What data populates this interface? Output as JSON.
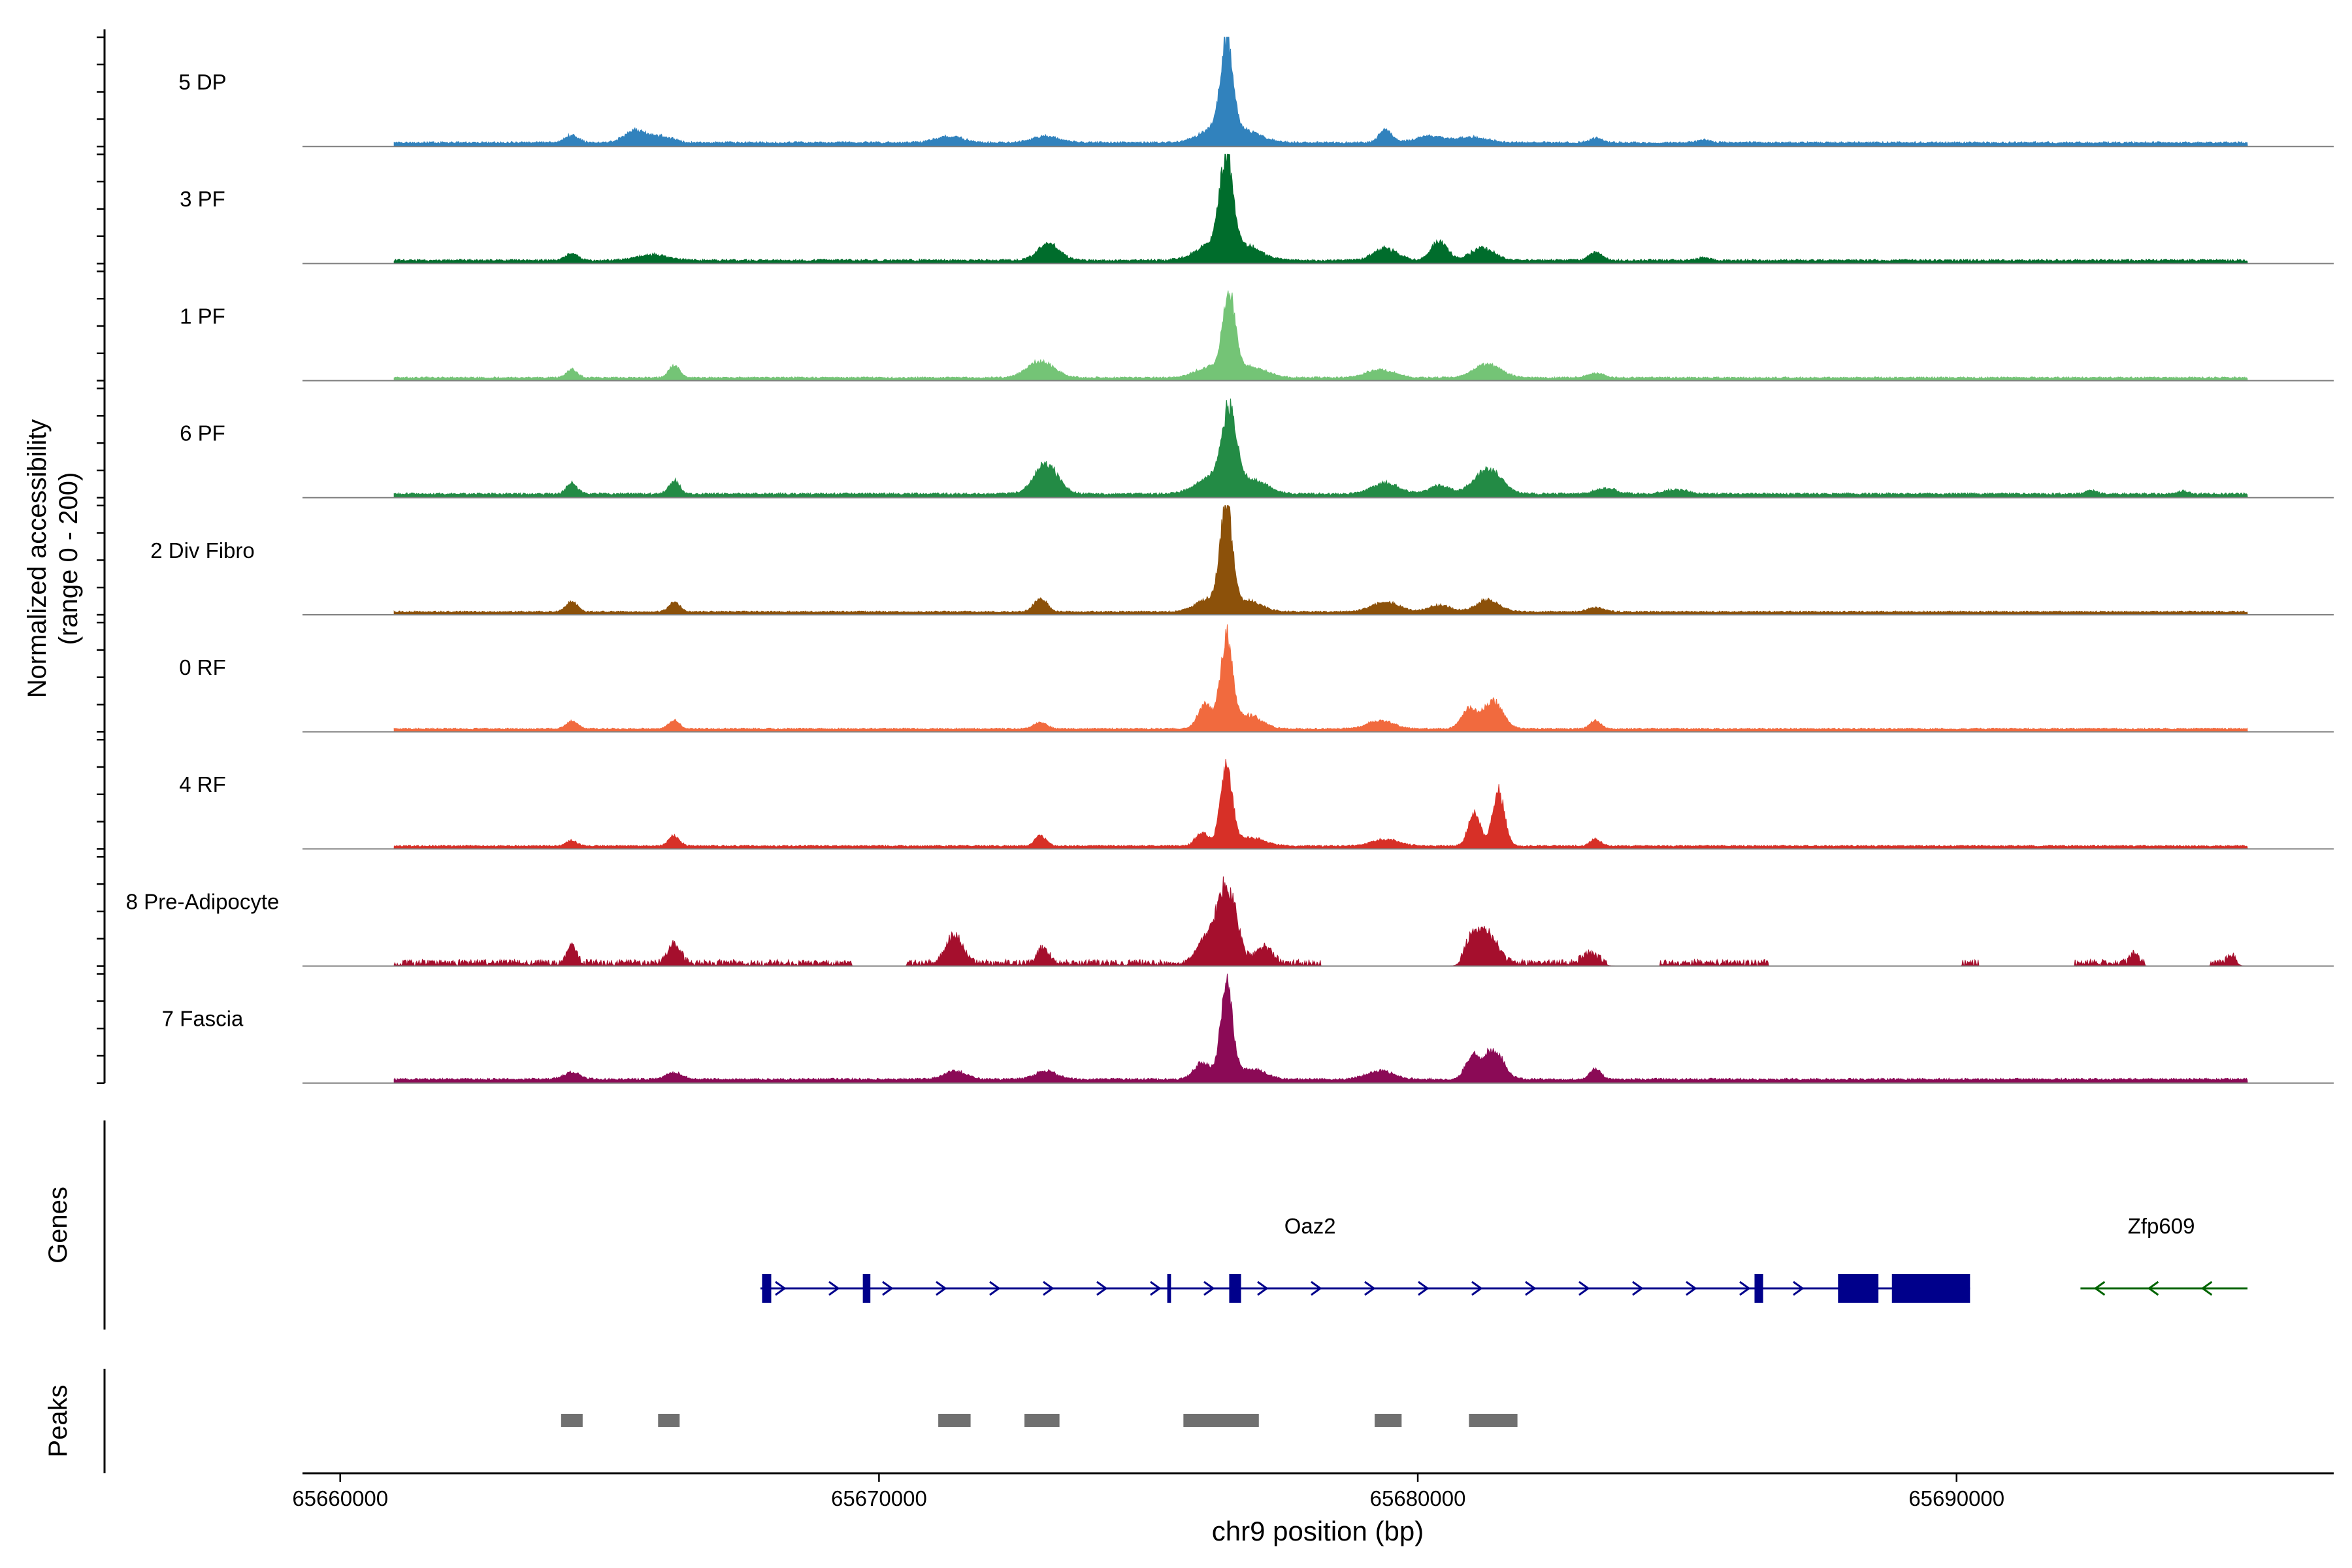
{
  "chart_data": {
    "type": "area",
    "chromosome": "chr9",
    "xlabel": "chr9 position (bp)",
    "ylabel_line1": "Normalized accessibility",
    "ylabel_line2": "(range 0 - 200)",
    "y_range": [
      0,
      200
    ],
    "xlim": [
      65659300,
      65697000
    ],
    "x_ticks": [
      65660000,
      65670000,
      65680000,
      65690000
    ],
    "x_tick_labels": [
      "65660000",
      "65670000",
      "65680000",
      "65690000"
    ],
    "track_titles": {
      "genes": "Genes",
      "peaks": "Peaks"
    },
    "signal_extent": [
      65661000,
      65695400
    ],
    "tracks": [
      {
        "name": "5 DP",
        "color": "#3182BD",
        "baseline": 5,
        "noise": 4,
        "noise_bins": [
          [
            65661000,
            65695400
          ]
        ],
        "peaks": [
          [
            65676450,
            160,
            110
          ],
          [
            65676250,
            25,
            300
          ],
          [
            65676800,
            20,
            300
          ],
          [
            65665500,
            22,
            220
          ],
          [
            65666000,
            10,
            200
          ],
          [
            65664300,
            14,
            120
          ],
          [
            65679400,
            24,
            120
          ],
          [
            65680200,
            12,
            250
          ],
          [
            65681000,
            10,
            300
          ],
          [
            65671300,
            12,
            250
          ],
          [
            65673100,
            12,
            250
          ],
          [
            65683300,
            8,
            120
          ],
          [
            65685300,
            5,
            120
          ]
        ]
      },
      {
        "name": "3 PF",
        "color": "#006D2C",
        "baseline": 4,
        "noise": 4,
        "noise_bins": [
          [
            65661000,
            65695400
          ]
        ],
        "peaks": [
          [
            65676450,
            160,
            120
          ],
          [
            65676200,
            30,
            300
          ],
          [
            65676800,
            25,
            300
          ],
          [
            65673150,
            30,
            200
          ],
          [
            65665800,
            10,
            300
          ],
          [
            65664300,
            12,
            120
          ],
          [
            65680400,
            35,
            150
          ],
          [
            65679400,
            22,
            220
          ],
          [
            65681200,
            22,
            220
          ],
          [
            65683300,
            15,
            120
          ],
          [
            65685300,
            5,
            120
          ]
        ]
      },
      {
        "name": "1 PF",
        "color": "#74C476",
        "baseline": 4,
        "noise": 3,
        "noise_bins": [
          [
            65661000,
            65695400
          ]
        ],
        "peaks": [
          [
            65676500,
            140,
            110
          ],
          [
            65676200,
            20,
            300
          ],
          [
            65676900,
            18,
            300
          ],
          [
            65673000,
            30,
            250
          ],
          [
            65666200,
            22,
            100
          ],
          [
            65664300,
            15,
            100
          ],
          [
            65681300,
            25,
            250
          ],
          [
            65679300,
            15,
            250
          ],
          [
            65683300,
            8,
            150
          ]
        ]
      },
      {
        "name": "6 PF",
        "color": "#238B45",
        "baseline": 5,
        "noise": 4,
        "noise_bins": [
          [
            65661000,
            65695400
          ]
        ],
        "peaks": [
          [
            65676500,
            135,
            130
          ],
          [
            65676200,
            30,
            300
          ],
          [
            65676900,
            25,
            300
          ],
          [
            65673100,
            55,
            220
          ],
          [
            65666200,
            25,
            100
          ],
          [
            65664300,
            20,
            100
          ],
          [
            65681300,
            45,
            250
          ],
          [
            65679400,
            20,
            250
          ],
          [
            65680400,
            15,
            200
          ],
          [
            65683500,
            10,
            200
          ],
          [
            65684800,
            8,
            200
          ],
          [
            65692500,
            6,
            100
          ],
          [
            65694200,
            5,
            100
          ]
        ]
      },
      {
        "name": "2 Div Fibro",
        "color": "#8C510A",
        "baseline": 4,
        "noise": 3,
        "noise_bins": [
          [
            65661000,
            65695400
          ]
        ],
        "peaks": [
          [
            65676450,
            180,
            110
          ],
          [
            65676150,
            25,
            250
          ],
          [
            65676850,
            20,
            250
          ],
          [
            65673000,
            25,
            120
          ],
          [
            65664300,
            20,
            100
          ],
          [
            65666200,
            18,
            100
          ],
          [
            65681300,
            22,
            220
          ],
          [
            65679400,
            18,
            250
          ],
          [
            65680400,
            12,
            200
          ],
          [
            65683300,
            8,
            150
          ]
        ]
      },
      {
        "name": "0 RF",
        "color": "#F16A3E",
        "baseline": 4,
        "noise": 3,
        "noise_bins": [
          [
            65661000,
            65695400
          ]
        ],
        "peaks": [
          [
            65676450,
            165,
            110
          ],
          [
            65676050,
            45,
            130
          ],
          [
            65676850,
            25,
            250
          ],
          [
            65681400,
            50,
            180
          ],
          [
            65680950,
            35,
            140
          ],
          [
            65679300,
            15,
            250
          ],
          [
            65664300,
            15,
            100
          ],
          [
            65666200,
            15,
            100
          ],
          [
            65673000,
            12,
            120
          ],
          [
            65683300,
            15,
            100
          ]
        ]
      },
      {
        "name": "4 RF",
        "color": "#D73027",
        "baseline": 4,
        "noise": 3,
        "noise_bins": [
          [
            65661000,
            65695400
          ]
        ],
        "peaks": [
          [
            65676450,
            140,
            110
          ],
          [
            65676000,
            25,
            120
          ],
          [
            65676900,
            15,
            250
          ],
          [
            65681500,
            100,
            110
          ],
          [
            65681050,
            60,
            110
          ],
          [
            65666200,
            18,
            100
          ],
          [
            65664300,
            10,
            100
          ],
          [
            65673000,
            20,
            100
          ],
          [
            65679400,
            12,
            250
          ],
          [
            65683300,
            12,
            100
          ]
        ]
      },
      {
        "name": "8 Pre-Adipocyte",
        "color": "#A50F2D",
        "baseline": 0,
        "noise": 12,
        "noise_bins": [
          [
            65661000,
            65669500
          ],
          [
            65670500,
            65678200
          ],
          [
            65680800,
            65683500
          ],
          [
            65684500,
            65686500
          ],
          [
            65690100,
            65690400
          ],
          [
            65692200,
            65693500
          ],
          [
            65694700,
            65695200
          ]
        ],
        "peaks": [
          [
            65676450,
            140,
            180
          ],
          [
            65676050,
            40,
            150
          ],
          [
            65677150,
            30,
            150
          ],
          [
            65671400,
            50,
            150
          ],
          [
            65673050,
            28,
            100
          ],
          [
            65664300,
            35,
            80
          ],
          [
            65666200,
            35,
            120
          ],
          [
            65681300,
            55,
            180
          ],
          [
            65681000,
            40,
            120
          ],
          [
            65683200,
            18,
            150
          ],
          [
            65693300,
            20,
            80
          ],
          [
            65695100,
            15,
            80
          ]
        ]
      },
      {
        "name": "7 Fascia",
        "color": "#8B0A56",
        "baseline": 5,
        "noise": 4,
        "noise_bins": [
          [
            65661000,
            65695400
          ]
        ],
        "peaks": [
          [
            65676450,
            170,
            110
          ],
          [
            65676000,
            30,
            150
          ],
          [
            65676900,
            20,
            250
          ],
          [
            65681400,
            55,
            180
          ],
          [
            65681000,
            40,
            120
          ],
          [
            65679300,
            15,
            250
          ],
          [
            65671400,
            15,
            200
          ],
          [
            65673100,
            15,
            200
          ],
          [
            65664300,
            12,
            150
          ],
          [
            65666200,
            12,
            150
          ],
          [
            65683300,
            20,
            100
          ]
        ]
      }
    ],
    "genes": [
      {
        "name": "Oaz2",
        "strand": "+",
        "color": "#00008B",
        "start": 65667800,
        "end": 65690250,
        "exons": [
          [
            65667830,
            65668000
          ],
          [
            65669700,
            65669840
          ],
          [
            65675350,
            65675420
          ],
          [
            65676500,
            65676720
          ],
          [
            65686250,
            65686410
          ],
          [
            65687800,
            65688550
          ],
          [
            65688800,
            65690250
          ]
        ],
        "label_position": 65678000
      },
      {
        "name": "Zfp609",
        "strand": "-",
        "color": "#006400",
        "start": 65692300,
        "end": 65695400,
        "exons": [],
        "label_position": 65693800
      }
    ],
    "peaks": [
      [
        65664100,
        65664500
      ],
      [
        65665900,
        65666300
      ],
      [
        65671100,
        65671700
      ],
      [
        65672700,
        65673350
      ],
      [
        65675650,
        65677050
      ],
      [
        65679200,
        65679700
      ],
      [
        65680950,
        65681850
      ]
    ]
  }
}
